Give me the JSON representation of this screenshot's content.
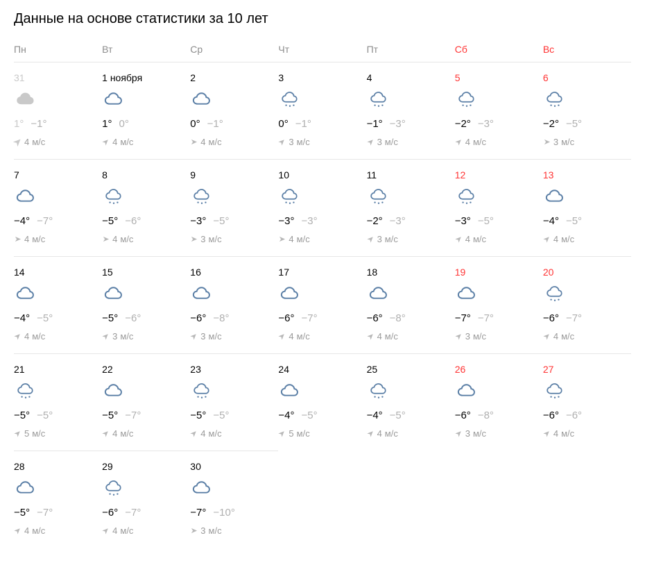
{
  "title": "Данные на основе статистики за 10 лет",
  "weekdays": [
    {
      "label": "Пн",
      "weekend": false
    },
    {
      "label": "Вт",
      "weekend": false
    },
    {
      "label": "Ср",
      "weekend": false
    },
    {
      "label": "Чт",
      "weekend": false
    },
    {
      "label": "Пт",
      "weekend": false
    },
    {
      "label": "Сб",
      "weekend": true
    },
    {
      "label": "Вс",
      "weekend": true
    }
  ],
  "wind_unit": "м/с",
  "days": [
    {
      "date": "31",
      "faded": true,
      "weekend": false,
      "icon": "cloud-filled",
      "high": "1°",
      "low": "−1°",
      "wind_speed": "4",
      "wind_dir": 45
    },
    {
      "date": "1 ноября",
      "faded": false,
      "weekend": false,
      "icon": "cloud",
      "high": "1°",
      "low": "0°",
      "wind_speed": "4",
      "wind_dir": 45
    },
    {
      "date": "2",
      "faded": false,
      "weekend": false,
      "icon": "cloud",
      "high": "0°",
      "low": "−1°",
      "wind_speed": "4",
      "wind_dir": 90
    },
    {
      "date": "3",
      "faded": false,
      "weekend": false,
      "icon": "snow",
      "high": "0°",
      "low": "−1°",
      "wind_speed": "3",
      "wind_dir": 45
    },
    {
      "date": "4",
      "faded": false,
      "weekend": false,
      "icon": "snow",
      "high": "−1°",
      "low": "−3°",
      "wind_speed": "3",
      "wind_dir": 45
    },
    {
      "date": "5",
      "faded": false,
      "weekend": true,
      "icon": "snow",
      "high": "−2°",
      "low": "−3°",
      "wind_speed": "4",
      "wind_dir": 45
    },
    {
      "date": "6",
      "faded": false,
      "weekend": true,
      "icon": "snow",
      "high": "−2°",
      "low": "−5°",
      "wind_speed": "3",
      "wind_dir": 90
    },
    {
      "date": "7",
      "faded": false,
      "weekend": false,
      "icon": "cloud",
      "high": "−4°",
      "low": "−7°",
      "wind_speed": "4",
      "wind_dir": 90
    },
    {
      "date": "8",
      "faded": false,
      "weekend": false,
      "icon": "snow",
      "high": "−5°",
      "low": "−6°",
      "wind_speed": "4",
      "wind_dir": 90
    },
    {
      "date": "9",
      "faded": false,
      "weekend": false,
      "icon": "snow",
      "high": "−3°",
      "low": "−5°",
      "wind_speed": "3",
      "wind_dir": 90
    },
    {
      "date": "10",
      "faded": false,
      "weekend": false,
      "icon": "snow",
      "high": "−3°",
      "low": "−3°",
      "wind_speed": "4",
      "wind_dir": 90
    },
    {
      "date": "11",
      "faded": false,
      "weekend": false,
      "icon": "snow",
      "high": "−2°",
      "low": "−3°",
      "wind_speed": "3",
      "wind_dir": 45
    },
    {
      "date": "12",
      "faded": false,
      "weekend": true,
      "icon": "snow",
      "high": "−3°",
      "low": "−5°",
      "wind_speed": "4",
      "wind_dir": 45
    },
    {
      "date": "13",
      "faded": false,
      "weekend": true,
      "icon": "cloud",
      "high": "−4°",
      "low": "−5°",
      "wind_speed": "4",
      "wind_dir": 45
    },
    {
      "date": "14",
      "faded": false,
      "weekend": false,
      "icon": "cloud",
      "high": "−4°",
      "low": "−5°",
      "wind_speed": "4",
      "wind_dir": 45
    },
    {
      "date": "15",
      "faded": false,
      "weekend": false,
      "icon": "cloud",
      "high": "−5°",
      "low": "−6°",
      "wind_speed": "3",
      "wind_dir": 45
    },
    {
      "date": "16",
      "faded": false,
      "weekend": false,
      "icon": "cloud",
      "high": "−6°",
      "low": "−8°",
      "wind_speed": "3",
      "wind_dir": 45
    },
    {
      "date": "17",
      "faded": false,
      "weekend": false,
      "icon": "cloud",
      "high": "−6°",
      "low": "−7°",
      "wind_speed": "4",
      "wind_dir": 45
    },
    {
      "date": "18",
      "faded": false,
      "weekend": false,
      "icon": "cloud",
      "high": "−6°",
      "low": "−8°",
      "wind_speed": "4",
      "wind_dir": 45
    },
    {
      "date": "19",
      "faded": false,
      "weekend": true,
      "icon": "cloud",
      "high": "−7°",
      "low": "−7°",
      "wind_speed": "3",
      "wind_dir": 45
    },
    {
      "date": "20",
      "faded": false,
      "weekend": true,
      "icon": "snow",
      "high": "−6°",
      "low": "−7°",
      "wind_speed": "4",
      "wind_dir": 45
    },
    {
      "date": "21",
      "faded": false,
      "weekend": false,
      "icon": "snow",
      "high": "−5°",
      "low": "−5°",
      "wind_speed": "5",
      "wind_dir": 45
    },
    {
      "date": "22",
      "faded": false,
      "weekend": false,
      "icon": "cloud",
      "high": "−5°",
      "low": "−7°",
      "wind_speed": "4",
      "wind_dir": 45
    },
    {
      "date": "23",
      "faded": false,
      "weekend": false,
      "icon": "snow",
      "high": "−5°",
      "low": "−5°",
      "wind_speed": "4",
      "wind_dir": 45
    },
    {
      "date": "24",
      "faded": false,
      "weekend": false,
      "icon": "cloud",
      "high": "−4°",
      "low": "−5°",
      "wind_speed": "5",
      "wind_dir": 45
    },
    {
      "date": "25",
      "faded": false,
      "weekend": false,
      "icon": "snow",
      "high": "−4°",
      "low": "−5°",
      "wind_speed": "4",
      "wind_dir": 45
    },
    {
      "date": "26",
      "faded": false,
      "weekend": true,
      "icon": "cloud",
      "high": "−6°",
      "low": "−8°",
      "wind_speed": "3",
      "wind_dir": 45
    },
    {
      "date": "27",
      "faded": false,
      "weekend": true,
      "icon": "snow",
      "high": "−6°",
      "low": "−6°",
      "wind_speed": "4",
      "wind_dir": 45
    },
    {
      "date": "28",
      "faded": false,
      "weekend": false,
      "icon": "cloud",
      "high": "−5°",
      "low": "−7°",
      "wind_speed": "4",
      "wind_dir": 45
    },
    {
      "date": "29",
      "faded": false,
      "weekend": false,
      "icon": "snow",
      "high": "−6°",
      "low": "−7°",
      "wind_speed": "4",
      "wind_dir": 45
    },
    {
      "date": "30",
      "faded": false,
      "weekend": false,
      "icon": "cloud",
      "high": "−7°",
      "low": "−10°",
      "wind_speed": "3",
      "wind_dir": 90
    }
  ],
  "colors": {
    "weekday_text": "#8c8c8c",
    "weekend_text": "#f33",
    "faded": "#c9c9c9",
    "high": "#000000",
    "low": "#b0b0b0",
    "wind": "#9a9a9a",
    "icon_stroke": "#5b7fa6",
    "border": "#e6e6e6"
  }
}
